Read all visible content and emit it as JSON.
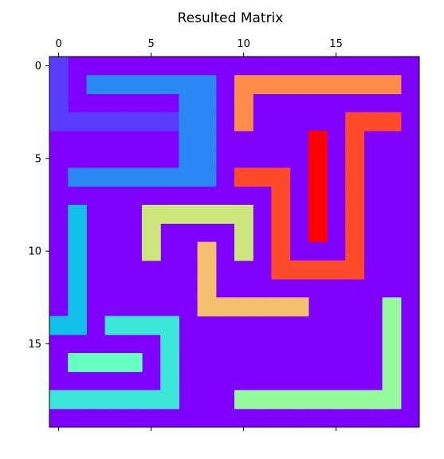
{
  "chart_data": {
    "type": "heatmap",
    "title": "Resulted Matrix",
    "xlabel": "",
    "ylabel": "",
    "grid": false,
    "legend": "none",
    "colormap": "rainbow",
    "xlim": [
      -0.5,
      19.5
    ],
    "ylim": [
      19.5,
      -0.5
    ],
    "x_ticks": [
      0,
      5,
      10,
      15
    ],
    "y_ticks": [
      0,
      5,
      10,
      15
    ],
    "x_ticks_top": true,
    "x_ticks_bottom_unlabeled": true,
    "background_value": 0,
    "background_color": "#8000ff",
    "rows": 20,
    "cols": 20,
    "regions": [
      {
        "value": 1,
        "color": "#5a3cff",
        "cells": [
          [
            0,
            0
          ],
          [
            1,
            0
          ],
          [
            2,
            0
          ],
          [
            3,
            0
          ],
          [
            3,
            1
          ],
          [
            3,
            2
          ],
          [
            3,
            3
          ],
          [
            3,
            4
          ],
          [
            3,
            5
          ],
          [
            3,
            6
          ]
        ]
      },
      {
        "value": 2,
        "color": "#2a88f5",
        "cells": [
          [
            1,
            2
          ],
          [
            1,
            3
          ],
          [
            1,
            4
          ],
          [
            1,
            5
          ],
          [
            1,
            6
          ],
          [
            1,
            7
          ],
          [
            1,
            8
          ],
          [
            2,
            8
          ],
          [
            3,
            8
          ],
          [
            4,
            8
          ],
          [
            5,
            8
          ],
          [
            6,
            8
          ],
          [
            6,
            7
          ],
          [
            6,
            6
          ],
          [
            6,
            5
          ],
          [
            6,
            4
          ],
          [
            6,
            3
          ],
          [
            6,
            2
          ],
          [
            6,
            1
          ],
          [
            2,
            7
          ],
          [
            3,
            7
          ],
          [
            4,
            7
          ],
          [
            5,
            7
          ]
        ]
      },
      {
        "value": 3,
        "color": "#ff8c4a",
        "cells": [
          [
            1,
            10
          ],
          [
            1,
            11
          ],
          [
            1,
            12
          ],
          [
            1,
            13
          ],
          [
            1,
            14
          ],
          [
            1,
            15
          ],
          [
            1,
            16
          ],
          [
            1,
            17
          ],
          [
            1,
            18
          ],
          [
            2,
            10
          ],
          [
            3,
            10
          ]
        ]
      },
      {
        "value": 4,
        "color": "#ff4a2a",
        "cells": [
          [
            3,
            16
          ],
          [
            3,
            17
          ],
          [
            3,
            18
          ],
          [
            4,
            16
          ],
          [
            5,
            16
          ],
          [
            6,
            16
          ],
          [
            7,
            16
          ],
          [
            8,
            16
          ],
          [
            9,
            16
          ],
          [
            10,
            16
          ],
          [
            11,
            16
          ],
          [
            11,
            15
          ],
          [
            11,
            14
          ],
          [
            11,
            13
          ],
          [
            11,
            12
          ],
          [
            10,
            12
          ],
          [
            9,
            12
          ],
          [
            8,
            12
          ],
          [
            7,
            12
          ],
          [
            6,
            12
          ],
          [
            6,
            11
          ],
          [
            6,
            10
          ]
        ]
      },
      {
        "value": 5,
        "color": "#ff0000",
        "cells": [
          [
            4,
            14
          ],
          [
            5,
            14
          ],
          [
            6,
            14
          ],
          [
            7,
            14
          ],
          [
            8,
            14
          ],
          [
            9,
            14
          ]
        ]
      },
      {
        "value": 6,
        "color": "#cde67c",
        "cells": [
          [
            8,
            5
          ],
          [
            8,
            6
          ],
          [
            8,
            7
          ],
          [
            8,
            8
          ],
          [
            8,
            9
          ],
          [
            8,
            10
          ],
          [
            9,
            5
          ],
          [
            10,
            5
          ],
          [
            9,
            10
          ],
          [
            10,
            10
          ]
        ]
      },
      {
        "value": 7,
        "color": "#f5c06e",
        "cells": [
          [
            10,
            8
          ],
          [
            11,
            8
          ],
          [
            12,
            8
          ],
          [
            13,
            8
          ],
          [
            13,
            9
          ],
          [
            13,
            10
          ],
          [
            13,
            11
          ],
          [
            13,
            12
          ],
          [
            13,
            13
          ]
        ]
      },
      {
        "value": 8,
        "color": "#10c0e8",
        "cells": [
          [
            8,
            1
          ],
          [
            9,
            1
          ],
          [
            10,
            1
          ],
          [
            11,
            1
          ],
          [
            12,
            1
          ],
          [
            13,
            1
          ],
          [
            14,
            1
          ],
          [
            14,
            0
          ]
        ]
      },
      {
        "value": 9,
        "color": "#3ce6d8",
        "cells": [
          [
            14,
            3
          ],
          [
            14,
            4
          ],
          [
            14,
            5
          ],
          [
            14,
            6
          ],
          [
            15,
            6
          ],
          [
            16,
            6
          ],
          [
            17,
            6
          ],
          [
            18,
            6
          ],
          [
            18,
            5
          ],
          [
            18,
            4
          ],
          [
            18,
            3
          ],
          [
            18,
            2
          ],
          [
            18,
            1
          ],
          [
            18,
            0
          ]
        ]
      },
      {
        "value": 10,
        "color": "#66ffc0",
        "cells": [
          [
            16,
            1
          ],
          [
            16,
            2
          ],
          [
            16,
            3
          ],
          [
            16,
            4
          ]
        ]
      },
      {
        "value": 11,
        "color": "#96fa9c",
        "cells": [
          [
            13,
            18
          ],
          [
            14,
            18
          ],
          [
            15,
            18
          ],
          [
            16,
            18
          ],
          [
            17,
            18
          ],
          [
            18,
            18
          ],
          [
            18,
            17
          ],
          [
            18,
            16
          ],
          [
            18,
            15
          ],
          [
            18,
            14
          ],
          [
            18,
            13
          ],
          [
            18,
            12
          ],
          [
            18,
            11
          ],
          [
            18,
            10
          ]
        ]
      }
    ]
  }
}
